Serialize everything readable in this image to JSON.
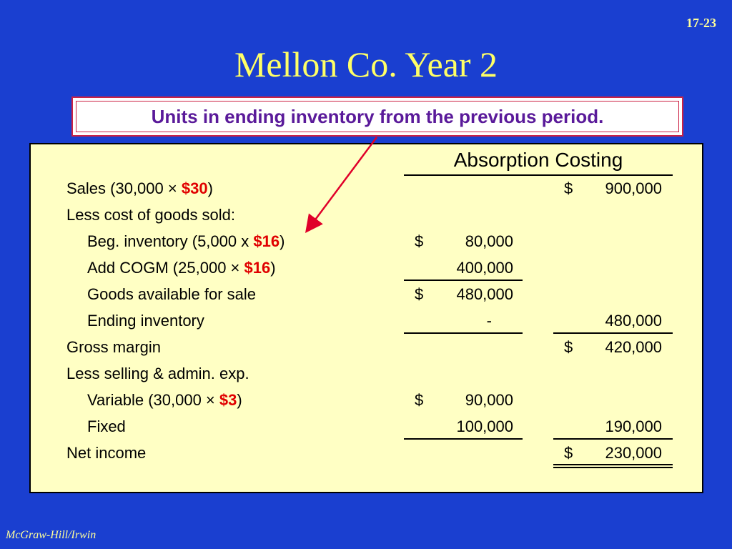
{
  "slide": {
    "page_number": "17-23",
    "title": "Mellon Co. Year 2",
    "callout": "Units in ending inventory from the previous period.",
    "footer": "McGraw-Hill/Irwin"
  },
  "statement": {
    "header": "Absorption Costing",
    "rows": [
      {
        "label_prefix": "Sales (30,000 × ",
        "label_red": "$30",
        "label_suffix": ")",
        "col1": "",
        "col2": "900,000",
        "col2_dollar": "$"
      },
      {
        "label": "Less cost of goods sold:"
      },
      {
        "label_prefix": "Beg. inventory (5,000 x ",
        "label_red": "$16",
        "label_suffix": ")",
        "col1": "80,000",
        "col1_dollar": "$"
      },
      {
        "label_prefix": "Add COGM (25,000 × ",
        "label_red": "$16",
        "label_suffix": ")",
        "col1": "400,000"
      },
      {
        "label": "Goods available for sale",
        "col1": "480,000",
        "col1_dollar": "$"
      },
      {
        "label": "Ending inventory",
        "col1": "-",
        "col2": "480,000"
      },
      {
        "label": "Gross margin",
        "col2": "420,000",
        "col2_dollar": "$"
      },
      {
        "label": "Less selling & admin. exp."
      },
      {
        "label_prefix": "Variable (30,000 × ",
        "label_red": "$3",
        "label_suffix": ")",
        "col1": "90,000",
        "col1_dollar": "$"
      },
      {
        "label": "Fixed",
        "col1": "100,000",
        "col2": "190,000"
      },
      {
        "label": "Net income",
        "col2": "230,000",
        "col2_dollar": "$"
      }
    ]
  }
}
